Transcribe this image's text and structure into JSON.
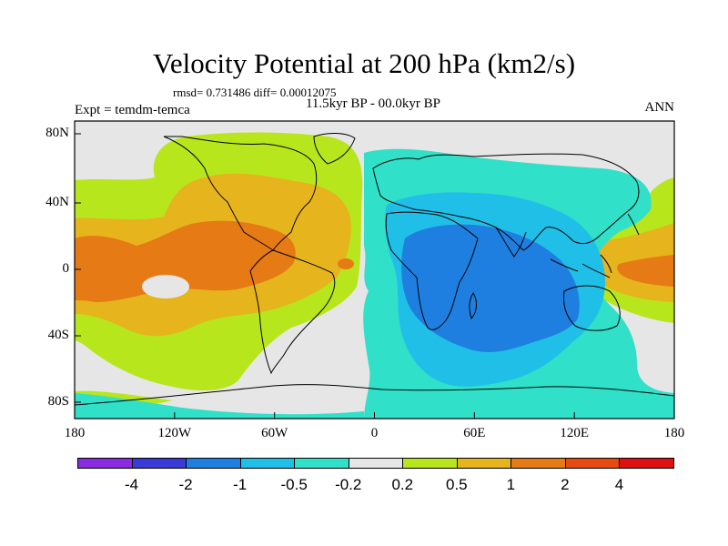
{
  "title": "Velocity Potential at 200 hPa (km2/s)",
  "stats": "rmsd= 0.731486 diff= 0.00012075",
  "period": "11.5kyr BP - 00.0kyr BP",
  "experiment": "Expt = temdm-temca",
  "season": "ANN",
  "axes": {
    "x_ticks": [
      "180",
      "120W",
      "60W",
      "0",
      "60E",
      "120E",
      "180"
    ],
    "y_ticks": [
      "80N",
      "40N",
      "0",
      "40S",
      "80S"
    ]
  },
  "colorbar": {
    "labels": [
      "-4",
      "-2",
      "-1",
      "-0.5",
      "-0.2",
      "0.2",
      "0.5",
      "1",
      "2",
      "4"
    ],
    "colors": [
      "#8a2be2",
      "#3a3ad6",
      "#1f7fe0",
      "#20bfe8",
      "#30e0c8",
      "#e6e6e6",
      "#b8e61c",
      "#e6b41c",
      "#e67a14",
      "#e64a10",
      "#e01010"
    ]
  },
  "map": {
    "colors": {
      "neutral": "#e6e6e6",
      "pos_02_05": "#b8e61c",
      "pos_05_1": "#e6b41c",
      "pos_1_2": "#e67a14",
      "neg_02_05": "#30e0c8",
      "neg_05_1": "#20bfe8",
      "neg_1_2": "#1f7fe0"
    }
  }
}
